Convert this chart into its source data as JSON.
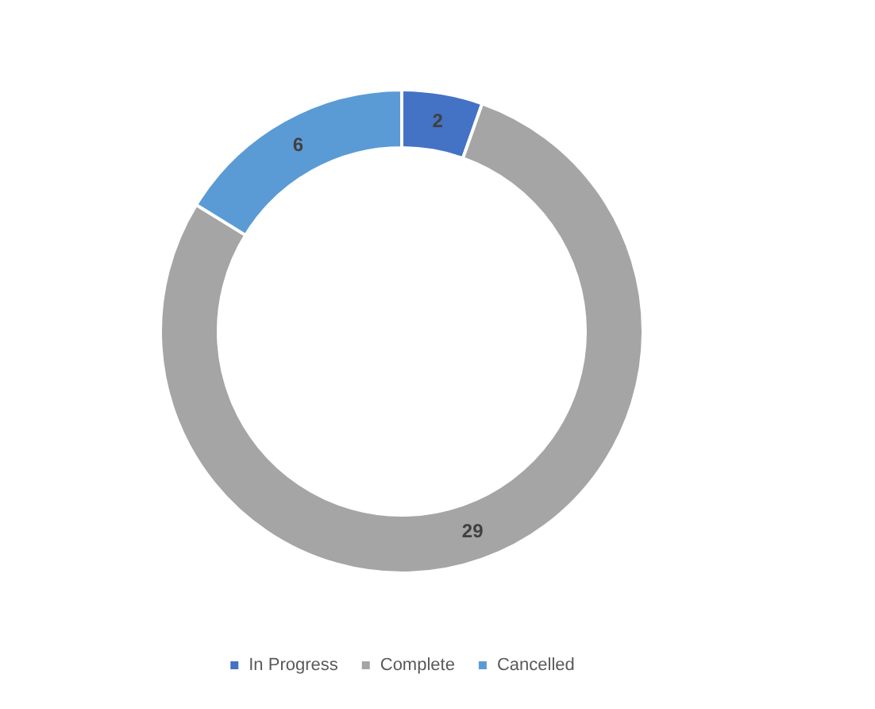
{
  "chart_data": {
    "type": "donut",
    "categories": [
      "In Progress",
      "Complete",
      "Cancelled"
    ],
    "values": [
      2,
      29,
      6
    ],
    "colors": [
      "#4472c4",
      "#a5a5a5",
      "#5b9bd5"
    ],
    "data_labels": true,
    "legend": "bottom"
  }
}
